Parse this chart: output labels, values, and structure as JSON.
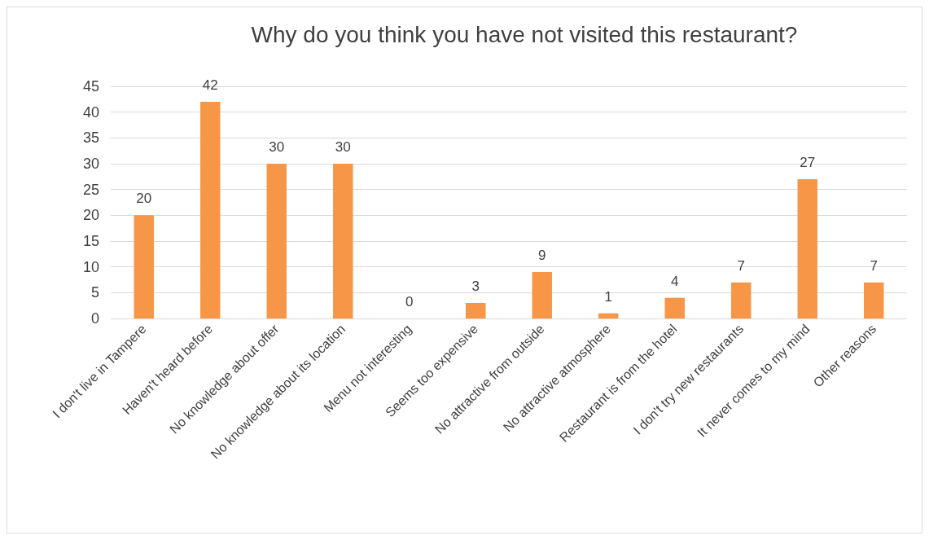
{
  "chart_data": {
    "type": "bar",
    "title": "Why do you think you have not visited this restaurant?",
    "categories": [
      "I don't live in Tampere",
      "Haven't heard before",
      "No knowledge about offer",
      "No knowledge about its location",
      "Menu not interesting",
      "Seems too expensive",
      "No attractive from outside",
      "No attractive atmosphere",
      "Restaurant is from the hotel",
      "I don't try new restaurants",
      "It never comes to my mind",
      "Other reasons"
    ],
    "values": [
      20,
      42,
      30,
      30,
      0,
      3,
      9,
      1,
      4,
      7,
      27,
      7
    ],
    "color": "#f79646",
    "ylim": [
      0,
      45
    ],
    "yticks": [
      0,
      5,
      10,
      15,
      20,
      25,
      30,
      35,
      40,
      45
    ],
    "grid": "y",
    "data_labels": true
  }
}
